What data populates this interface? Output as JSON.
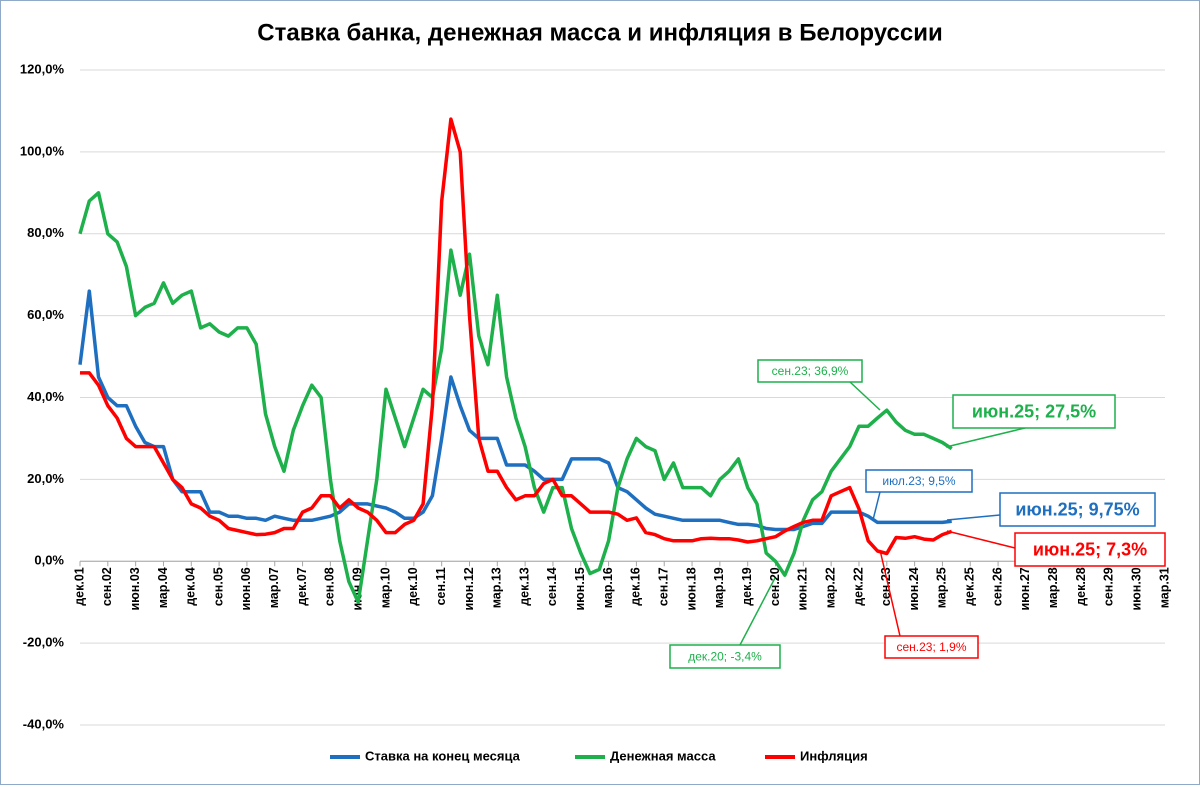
{
  "chart_data": {
    "type": "line",
    "title": "Ставка банка, денежная масса и инфляция в Белоруссии",
    "categories": [
      "дек.01",
      null,
      null,
      "сен.02",
      null,
      null,
      "июн.03",
      null,
      null,
      "мар.04",
      null,
      null,
      "дек.04",
      null,
      null,
      "сен.05",
      null,
      null,
      "июн.06",
      null,
      null,
      "мар.07",
      null,
      null,
      "дек.07",
      null,
      null,
      "сен.08",
      null,
      null,
      "июн.09",
      null,
      null,
      "мар.10",
      null,
      null,
      "дек.10",
      null,
      null,
      "сен.11",
      null,
      null,
      "июн.12",
      null,
      null,
      "мар.13",
      null,
      null,
      "дек.13",
      null,
      null,
      "сен.14",
      null,
      null,
      "июн.15",
      null,
      null,
      "мар.16",
      null,
      null,
      "дек.16",
      null,
      null,
      "сен.17",
      null,
      null,
      "июн.18",
      null,
      null,
      "мар.19",
      null,
      null,
      "дек.19",
      null,
      null,
      "сен.20",
      null,
      null,
      "июн.21",
      null,
      null,
      "мар.22",
      null,
      null,
      "дек.22",
      null,
      null,
      "сен.23",
      null,
      null,
      "июн.24",
      null,
      null,
      "мар.25",
      null,
      null,
      "дек.25",
      null,
      null,
      "сен.26",
      null,
      null,
      "июн.27",
      null,
      null,
      "мар.28",
      null,
      null,
      "дек.28",
      null,
      null,
      "сен.29",
      null,
      null,
      "июн.30",
      null,
      null,
      "мар.31"
    ],
    "series": [
      {
        "name": "Ставка на конец месяца",
        "color": "#1f6fc0",
        "values": [
          48,
          66,
          45,
          40,
          38,
          38,
          33,
          29,
          28,
          28,
          20,
          17,
          17,
          17,
          12,
          12,
          11,
          11,
          10.5,
          10.5,
          10,
          11,
          10.5,
          10,
          10,
          10,
          10.5,
          11,
          12,
          14,
          14,
          14,
          13.5,
          13,
          12,
          10.5,
          10.5,
          12,
          16,
          30,
          45,
          38,
          32,
          30,
          30,
          30,
          23.5,
          23.5,
          23.5,
          22,
          20,
          20,
          20,
          25,
          25,
          25,
          25,
          24,
          18,
          17,
          15,
          13,
          11.5,
          11,
          10.5,
          10,
          10,
          10,
          10,
          10,
          9.5,
          9,
          9,
          8.75,
          8,
          7.75,
          7.75,
          7.75,
          8.5,
          9.25,
          9.25,
          12,
          12,
          12,
          12,
          11,
          9.5,
          9.5,
          9.5,
          9.5,
          9.5,
          9.5,
          9.5,
          9.5,
          9.75,
          null,
          null,
          null,
          null,
          null,
          null,
          null,
          null,
          null,
          null,
          null,
          null,
          null,
          null,
          null,
          null,
          null,
          null,
          null,
          null,
          null,
          null,
          null
        ]
      },
      {
        "name": "Денежная масса",
        "color": "#1db04b",
        "values": [
          80,
          88,
          90,
          80,
          78,
          72,
          60,
          62,
          63,
          68,
          63,
          65,
          66,
          57,
          58,
          56,
          55,
          57,
          57,
          53,
          36,
          28,
          22,
          32,
          38,
          43,
          40,
          20,
          5,
          -5,
          -10,
          5,
          20,
          42,
          35,
          28,
          35,
          42,
          40,
          52,
          76,
          65,
          75,
          55,
          48,
          65,
          45,
          35,
          28,
          18,
          12,
          18,
          18,
          8,
          2,
          -3,
          -2,
          5,
          18,
          25,
          30,
          28,
          27,
          20,
          24,
          18,
          18,
          18,
          16,
          20,
          22,
          25,
          18,
          14,
          2,
          0,
          -3.4,
          2,
          10,
          15,
          17,
          22,
          25,
          28,
          33,
          33,
          35,
          36.9,
          34,
          32,
          31,
          31,
          30,
          29,
          27.5,
          null,
          null,
          null,
          null,
          null,
          null,
          null,
          null,
          null,
          null,
          null,
          null,
          null,
          null,
          null,
          null,
          null,
          null,
          null,
          null,
          null,
          null,
          null
        ]
      },
      {
        "name": "Инфляция",
        "color": "#ff0000",
        "values": [
          46,
          46,
          43,
          38,
          35,
          30,
          28,
          28,
          28,
          24,
          20,
          18,
          14,
          13,
          11,
          10,
          8,
          7.5,
          7,
          6.5,
          6.6,
          7,
          8,
          8,
          12,
          13,
          16,
          16,
          13,
          15,
          13,
          12,
          10,
          7,
          7,
          9,
          10,
          14,
          38,
          88,
          108,
          100,
          60,
          30,
          22,
          22,
          18,
          15,
          16,
          16,
          19,
          20,
          16,
          16,
          14,
          12,
          12,
          12,
          11.5,
          10,
          10.6,
          7,
          6.5,
          5.5,
          5,
          5,
          5,
          5.5,
          5.6,
          5.5,
          5.5,
          5.2,
          4.7,
          5,
          5.5,
          6,
          7.4,
          8.5,
          9.5,
          10,
          10,
          16,
          17,
          18,
          12.8,
          5,
          2.5,
          1.9,
          5.8,
          5.6,
          6,
          5.4,
          5.2,
          6.5,
          7.3,
          null,
          null,
          null,
          null,
          null,
          null,
          null,
          null,
          null,
          null,
          null,
          null,
          null,
          null,
          null,
          null,
          null,
          null,
          null,
          null,
          null,
          null,
          null
        ]
      }
    ],
    "ylim": [
      -40,
      120
    ],
    "yticks": [
      {
        "value": -40,
        "label": "-40,0%"
      },
      {
        "value": -20,
        "label": "-20,0%"
      },
      {
        "value": 0,
        "label": "0,0%"
      },
      {
        "value": 20,
        "label": "20,0%"
      },
      {
        "value": 40,
        "label": "40,0%"
      },
      {
        "value": 60,
        "label": "60,0%"
      },
      {
        "value": 80,
        "label": "80,0%"
      },
      {
        "value": 100,
        "label": "100,0%"
      },
      {
        "value": 120,
        "label": "120,0%"
      }
    ],
    "grid": true,
    "legend": "bottom",
    "annotations": [
      {
        "text": "сен.23; 36,9%",
        "color": "#1db04b"
      },
      {
        "text": "июн.25; 27,5%",
        "color": "#1db04b"
      },
      {
        "text": "июл.23; 9,5%",
        "color": "#1f6fc0"
      },
      {
        "text": "июн.25; 9,75%",
        "color": "#1f6fc0"
      },
      {
        "text": "июн.25; 7,3%",
        "color": "#ff0000"
      },
      {
        "text": "сен.23; 1,9%",
        "color": "#ff0000"
      },
      {
        "text": "дек.20; -3,4%",
        "color": "#1db04b"
      }
    ]
  }
}
